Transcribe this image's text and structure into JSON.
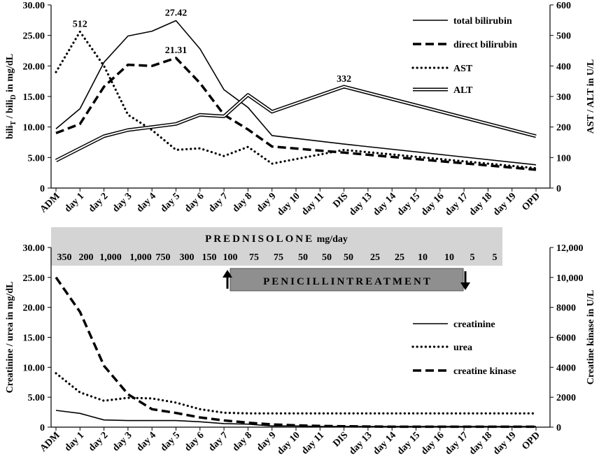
{
  "chart_data": [
    {
      "type": "line",
      "categories": [
        "ADM",
        "day 1",
        "day 2",
        "day 3",
        "day 4",
        "day 5",
        "day 6",
        "day 7",
        "day 8",
        "day 9",
        "day 10",
        "day 11",
        "DIS",
        "day 13",
        "day 14",
        "day 15",
        "day 16",
        "day 17",
        "day 18",
        "day 19",
        "OPD"
      ],
      "ylabel": "bili_T / bili_D in mg/dL",
      "ylabel_main": "bili",
      "ylabel_sub1": "T",
      "ylabel_mid": " / bili",
      "ylabel_sub2": "D",
      "ylabel_tail": " in mg/dL",
      "y2label": "AST / ALT in U/L",
      "ylim": [
        0,
        30
      ],
      "y2lim": [
        0,
        600
      ],
      "yticks": [
        "0",
        "5.00",
        "10.00",
        "15.00",
        "20.00",
        "25.00",
        "30.00"
      ],
      "y2ticks": [
        "0",
        "100",
        "200",
        "300",
        "400",
        "500",
        "600"
      ],
      "legend": "top-right",
      "series": [
        {
          "name": "total bilirubin",
          "axis": "left",
          "style": "solid",
          "values": [
            9.7,
            13.0,
            20.6,
            24.9,
            25.7,
            27.42,
            22.8,
            16.1,
            13.2,
            8.6,
            null,
            null,
            7.2,
            null,
            null,
            null,
            null,
            null,
            null,
            null,
            3.8
          ]
        },
        {
          "name": "direct bilirubin",
          "axis": "left",
          "style": "dashed",
          "values": [
            9.0,
            10.5,
            16.6,
            20.2,
            20.0,
            21.31,
            17.2,
            12.0,
            9.6,
            6.8,
            null,
            null,
            5.8,
            null,
            null,
            null,
            null,
            null,
            null,
            null,
            3.0
          ]
        },
        {
          "name": "AST",
          "axis": "right",
          "style": "dotted",
          "values": [
            380,
            512,
            400,
            240,
            190,
            125,
            130,
            105,
            135,
            80,
            null,
            null,
            125,
            null,
            null,
            null,
            null,
            null,
            null,
            null,
            65
          ]
        },
        {
          "name": "ALT",
          "axis": "right",
          "style": "double",
          "values": [
            90,
            130,
            170,
            190,
            200,
            210,
            240,
            235,
            305,
            250,
            null,
            null,
            332,
            null,
            null,
            null,
            null,
            null,
            null,
            null,
            170
          ]
        }
      ],
      "annotations": [
        {
          "text": "512",
          "series": "AST",
          "index": 1
        },
        {
          "text": "27.42",
          "series": "total bilirubin",
          "index": 5
        },
        {
          "text": "21.31",
          "series": "direct bilirubin",
          "index": 5
        },
        {
          "text": "332",
          "series": "ALT",
          "index": 12
        }
      ]
    },
    {
      "type": "line",
      "categories": [
        "ADM",
        "day 1",
        "day 2",
        "day 3",
        "day 4",
        "day 5",
        "day 6",
        "day 7",
        "day 8",
        "day 9",
        "day 10",
        "day 11",
        "DIS",
        "day 13",
        "day 14",
        "day 15",
        "day 16",
        "day 17",
        "day 18",
        "day 19",
        "OPD"
      ],
      "ylabel": "Creatinine / urea in mg/dL",
      "y2label": "Creatine kinase in U/L",
      "ylim": [
        0,
        30
      ],
      "y2lim": [
        0,
        12000
      ],
      "yticks": [
        "0",
        "5.00",
        "10.00",
        "15.00",
        "20.00",
        "25.00",
        "30.00"
      ],
      "y2ticks": [
        "0",
        "2000",
        "4000",
        "6000",
        "8000",
        "10,000",
        "12,000"
      ],
      "legend": "right",
      "series": [
        {
          "name": "creatinine",
          "axis": "left",
          "style": "solid",
          "values": [
            2.8,
            2.3,
            1.2,
            1.1,
            1.1,
            1.1,
            0.9,
            0.6,
            0.5,
            0.2,
            0.2,
            0.1,
            0.1,
            0.1,
            0.1,
            0.1,
            0.1,
            0.1,
            0.1,
            0.1,
            0.1
          ]
        },
        {
          "name": "urea",
          "axis": "left",
          "style": "dotted",
          "values": [
            9.0,
            5.8,
            4.4,
            4.9,
            4.8,
            4.1,
            3.0,
            2.4,
            2.3,
            2.3,
            2.3,
            2.3,
            2.3,
            2.3,
            2.3,
            2.3,
            2.3,
            2.3,
            2.3,
            2.3,
            2.3
          ]
        },
        {
          "name": "creatine kinase",
          "axis": "right",
          "style": "dashed",
          "values": [
            10000,
            7700,
            4100,
            2200,
            1200,
            950,
            650,
            450,
            300,
            180,
            120,
            80,
            60,
            40,
            30,
            30,
            30,
            30,
            30,
            30,
            30
          ]
        }
      ]
    }
  ],
  "prednisolone": {
    "title": "PREDNISOLONE",
    "unit": "mg/day",
    "doses": [
      "350",
      "200",
      "1,000",
      "1,000",
      "750",
      "300",
      "150",
      "100",
      "75",
      "75",
      "50",
      "50",
      "50",
      "25",
      "25",
      "10",
      "10",
      "5",
      "5"
    ]
  },
  "penicillin": {
    "label": "PENICILLINTREATMENT"
  }
}
